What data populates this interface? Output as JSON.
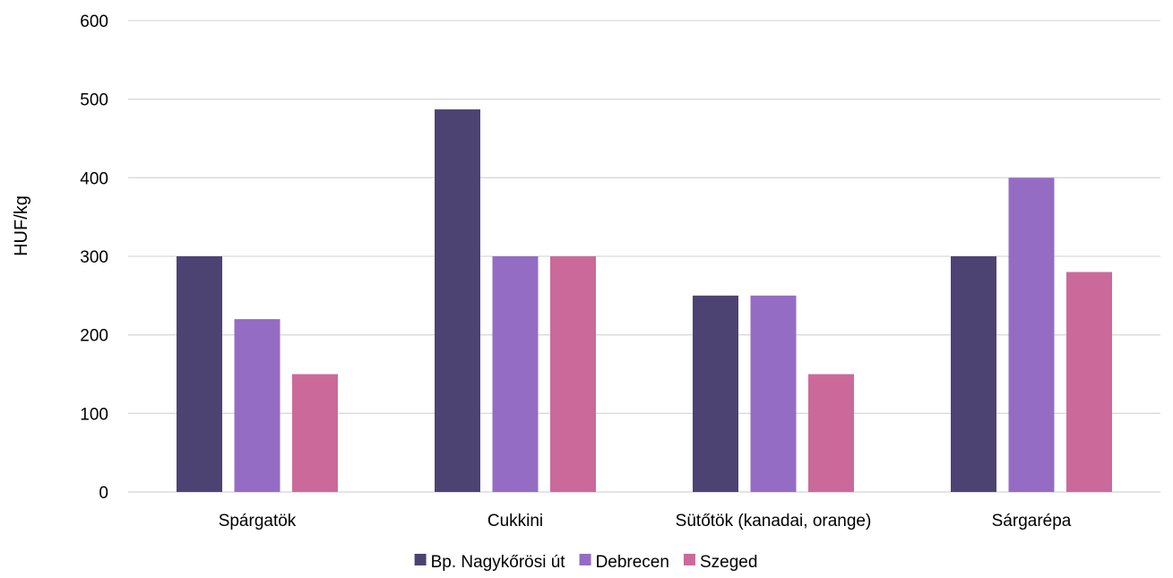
{
  "chart_data": {
    "type": "bar",
    "title": "",
    "xlabel": "",
    "ylabel": "HUF/kg",
    "ylim": [
      0,
      600
    ],
    "yticks": [
      0,
      100,
      200,
      300,
      400,
      500,
      600
    ],
    "grid": true,
    "legend_position": "bottom",
    "categories": [
      "Spárgatök",
      "Cukkini",
      "Sütőtök (kanadai, orange)",
      "Sárgarépa"
    ],
    "series": [
      {
        "name": "Bp. Nagykőrösi út",
        "color": "#4d4373",
        "values": [
          300,
          487,
          250,
          300
        ]
      },
      {
        "name": "Debrecen",
        "color": "#956cc4",
        "values": [
          220,
          300,
          250,
          400
        ]
      },
      {
        "name": "Szeged",
        "color": "#cb6a9a",
        "values": [
          150,
          300,
          150,
          280
        ]
      }
    ]
  }
}
